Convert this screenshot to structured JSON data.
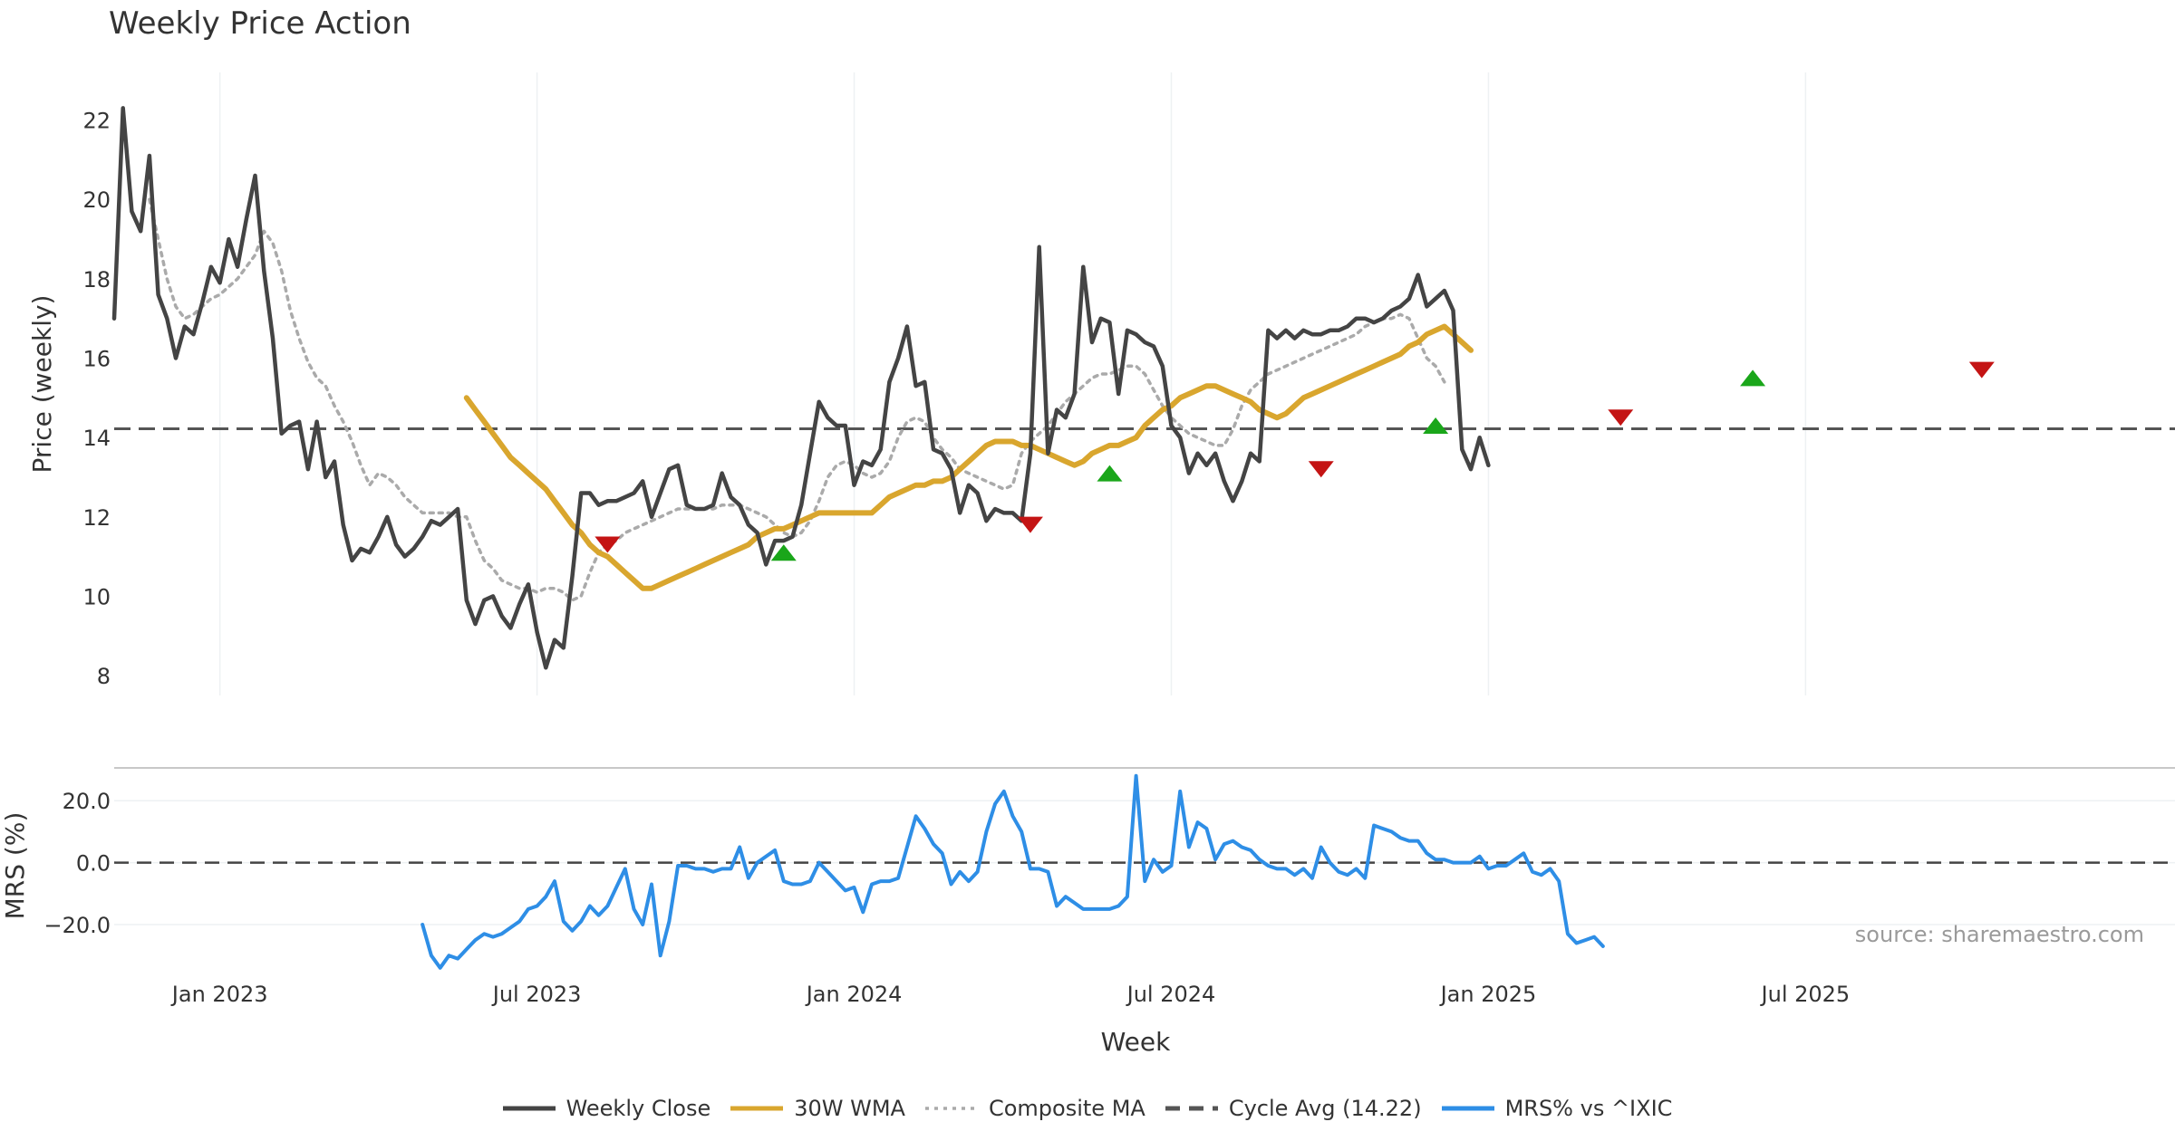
{
  "chart_data": {
    "type": "line",
    "title": "Weekly Price Action",
    "source": "source: sharemaestro.com",
    "xlabel": "Week",
    "x_tick_labels": [
      "Jan 2023",
      "Jul 2023",
      "Jan 2024",
      "Jul 2024",
      "Jan 2025",
      "Jul 2025"
    ],
    "x_tick_weeks": [
      12,
      48,
      84,
      120,
      156,
      192
    ],
    "week_range": [
      0,
      226
    ],
    "price_panel": {
      "ylabel": "Price (weekly)",
      "ylim": [
        7.5,
        23.2
      ],
      "yticks": [
        8,
        10,
        12,
        14,
        16,
        18,
        20,
        22
      ],
      "cycle_avg": 14.22
    },
    "mrs_panel": {
      "ylabel": "MRS (%)",
      "ylim": [
        -32,
        30
      ],
      "yticks": [
        20,
        0,
        -20
      ],
      "ytick_labels": [
        "20.0",
        "0.0",
        "−20.0"
      ],
      "zero_line": 0
    },
    "series": [
      {
        "name": "Weekly Close",
        "color": "#444444",
        "start_week": 0,
        "values": [
          17.0,
          22.3,
          19.7,
          19.2,
          21.1,
          17.6,
          17.0,
          16.0,
          16.8,
          16.6,
          17.4,
          18.3,
          17.9,
          19.0,
          18.3,
          19.5,
          20.6,
          18.2,
          16.5,
          14.1,
          14.3,
          14.4,
          13.2,
          14.4,
          13.0,
          13.4,
          11.8,
          10.9,
          11.2,
          11.1,
          11.5,
          12.0,
          11.3,
          11.0,
          11.2,
          11.5,
          11.9,
          11.8,
          12.0,
          12.2,
          9.9,
          9.3,
          9.9,
          10.0,
          9.5,
          9.2,
          9.8,
          10.3,
          9.1,
          8.2,
          8.9,
          8.7,
          10.5,
          12.6,
          12.6,
          12.3,
          12.4,
          12.4,
          12.5,
          12.6,
          12.9,
          12.0,
          12.6,
          13.2,
          13.3,
          12.3,
          12.2,
          12.2,
          12.3,
          13.1,
          12.5,
          12.3,
          11.8,
          11.6,
          10.8,
          11.4,
          11.4,
          11.5,
          12.3,
          13.6,
          14.9,
          14.5,
          14.3,
          14.3,
          12.8,
          13.4,
          13.3,
          13.7,
          15.4,
          16.0,
          16.8,
          15.3,
          15.4,
          13.7,
          13.6,
          13.2,
          12.1,
          12.8,
          12.6,
          11.9,
          12.2,
          12.1,
          12.1,
          11.9,
          13.6,
          18.8,
          13.6,
          14.7,
          14.5,
          15.1,
          18.3,
          16.4,
          17.0,
          16.9,
          15.1,
          16.7,
          16.6,
          16.4,
          16.3,
          15.8,
          14.3,
          14.0,
          13.1,
          13.6,
          13.3,
          13.6,
          12.9,
          12.4,
          12.9,
          13.6,
          13.4,
          16.7,
          16.5,
          16.7,
          16.5,
          16.7,
          16.6,
          16.6,
          16.7,
          16.7,
          16.8,
          17.0,
          17.0,
          16.9,
          17.0,
          17.2,
          17.3,
          17.5,
          18.1,
          17.3,
          17.5,
          17.7,
          17.2,
          13.7,
          13.2,
          14.0,
          13.3
        ]
      },
      {
        "name": "30W WMA",
        "color": "#d9a62e",
        "start_week": 40,
        "values": [
          15.0,
          14.7,
          14.4,
          14.1,
          13.8,
          13.5,
          13.3,
          13.1,
          12.9,
          12.7,
          12.4,
          12.1,
          11.8,
          11.6,
          11.3,
          11.1,
          11.0,
          10.8,
          10.6,
          10.4,
          10.2,
          10.2,
          10.3,
          10.4,
          10.5,
          10.6,
          10.7,
          10.8,
          10.9,
          11.0,
          11.1,
          11.2,
          11.3,
          11.5,
          11.6,
          11.7,
          11.7,
          11.8,
          11.9,
          12.0,
          12.1,
          12.1,
          12.1,
          12.1,
          12.1,
          12.1,
          12.1,
          12.3,
          12.5,
          12.6,
          12.7,
          12.8,
          12.8,
          12.9,
          12.9,
          13.0,
          13.2,
          13.4,
          13.6,
          13.8,
          13.9,
          13.9,
          13.9,
          13.8,
          13.8,
          13.7,
          13.6,
          13.5,
          13.4,
          13.3,
          13.4,
          13.6,
          13.7,
          13.8,
          13.8,
          13.9,
          14.0,
          14.3,
          14.5,
          14.7,
          14.8,
          15.0,
          15.1,
          15.2,
          15.3,
          15.3,
          15.2,
          15.1,
          15.0,
          14.9,
          14.7,
          14.6,
          14.5,
          14.6,
          14.8,
          15.0,
          15.1,
          15.2,
          15.3,
          15.4,
          15.5,
          15.6,
          15.7,
          15.8,
          15.9,
          16.0,
          16.1,
          16.3,
          16.4,
          16.6,
          16.7,
          16.8,
          16.6,
          16.4,
          16.2
        ]
      },
      {
        "name": "Composite MA",
        "color": "#aaaaaa",
        "start_week": 4,
        "values": [
          20.0,
          19.0,
          18.0,
          17.3,
          17.0,
          17.1,
          17.3,
          17.5,
          17.6,
          17.8,
          18.0,
          18.3,
          18.6,
          19.2,
          18.9,
          18.2,
          17.2,
          16.5,
          15.9,
          15.5,
          15.3,
          14.8,
          14.4,
          13.9,
          13.3,
          12.8,
          13.1,
          13.0,
          12.8,
          12.5,
          12.3,
          12.1,
          12.1,
          12.1,
          12.1,
          12.0,
          12.0,
          11.4,
          10.9,
          10.7,
          10.4,
          10.3,
          10.2,
          10.2,
          10.1,
          10.2,
          10.2,
          10.1,
          9.9,
          10.0,
          10.6,
          11.1,
          11.3,
          11.4,
          11.6,
          11.7,
          11.8,
          11.9,
          12.0,
          12.1,
          12.2,
          12.2,
          12.2,
          12.2,
          12.2,
          12.3,
          12.3,
          12.3,
          12.2,
          12.1,
          12.0,
          11.8,
          11.6,
          11.5,
          11.6,
          11.9,
          12.4,
          13.0,
          13.3,
          13.4,
          13.3,
          13.1,
          13.0,
          13.1,
          13.4,
          14.0,
          14.4,
          14.5,
          14.4,
          14.0,
          13.7,
          13.5,
          13.2,
          13.1,
          13.0,
          12.9,
          12.8,
          12.7,
          12.8,
          13.6,
          13.9,
          14.1,
          14.3,
          14.6,
          14.9,
          15.1,
          15.3,
          15.5,
          15.6,
          15.6,
          15.7,
          15.8,
          15.8,
          15.6,
          15.2,
          14.8,
          14.5,
          14.3,
          14.1,
          14.0,
          13.9,
          13.8,
          13.8,
          14.2,
          14.8,
          15.2,
          15.4,
          15.6,
          15.7,
          15.8,
          15.9,
          16.0,
          16.1,
          16.2,
          16.3,
          16.4,
          16.5,
          16.6,
          16.8,
          16.9,
          17.0,
          17.0,
          17.1,
          17.0,
          16.5,
          16.0,
          15.8,
          15.4
        ]
      },
      {
        "name": "MRS% vs ^IXIC",
        "color": "#2e8ee6",
        "panel": "mrs",
        "start_week": 35,
        "values": [
          -20,
          -30,
          -34,
          -30,
          -31,
          -28,
          -25,
          -23,
          -24,
          -23,
          -21,
          -19,
          -15,
          -14,
          -11,
          -6,
          -19,
          -22,
          -19,
          -14,
          -17,
          -14,
          -8,
          -2,
          -15,
          -20,
          -7,
          -30,
          -19,
          -1,
          -1,
          -2,
          -2,
          -3,
          -2,
          -2,
          5,
          -5,
          0,
          2,
          4,
          -6,
          -7,
          -7,
          -6,
          0,
          -3,
          -6,
          -9,
          -8,
          -16,
          -7,
          -6,
          -6,
          -5,
          5,
          15,
          11,
          6,
          3,
          -7,
          -3,
          -6,
          -3,
          10,
          19,
          23,
          15,
          10,
          -2,
          -2,
          -3,
          -14,
          -11,
          -13,
          -15,
          -15,
          -15,
          -15,
          -14,
          -11,
          28,
          -6,
          1,
          -3,
          -1,
          23,
          5,
          13,
          11,
          1,
          6,
          7,
          5,
          4,
          1,
          -1,
          -2,
          -2,
          -4,
          -2,
          -5,
          5,
          0,
          -3,
          -4,
          -2,
          -5,
          12,
          11,
          10,
          8,
          7,
          7,
          3,
          1,
          1,
          0,
          0,
          0,
          2,
          -2,
          -1,
          -1,
          1,
          3,
          -3,
          -4,
          -2,
          -6,
          -23,
          -26,
          -25,
          -24,
          -27
        ]
      }
    ],
    "cycle_avg_line": {
      "name": "Cycle Avg (14.22)",
      "value": 14.22,
      "color": "#555555"
    },
    "signals": [
      {
        "type": "sell",
        "week": 56,
        "price": 11.3
      },
      {
        "type": "buy",
        "week": 76,
        "price": 11.1
      },
      {
        "type": "sell",
        "week": 104,
        "price": 11.8
      },
      {
        "type": "buy",
        "week": 113,
        "price": 13.1
      },
      {
        "type": "sell",
        "week": 137,
        "price": 13.2
      },
      {
        "type": "buy",
        "week": 150,
        "price": 14.3
      },
      {
        "type": "sell",
        "week": 171,
        "price": 14.5
      },
      {
        "type": "buy",
        "week": 186,
        "price": 15.5
      },
      {
        "type": "sell",
        "week": 212,
        "price": 15.7
      }
    ],
    "signal_colors": {
      "buy": "#1aa61a",
      "sell": "#c41414"
    },
    "legend": [
      {
        "label": "Weekly Close",
        "style": "solid",
        "color": "#444444"
      },
      {
        "label": "30W WMA",
        "style": "solid",
        "color": "#d9a62e"
      },
      {
        "label": "Composite MA",
        "style": "dotted",
        "color": "#aaaaaa"
      },
      {
        "label": "Cycle Avg (14.22)",
        "style": "dashed",
        "color": "#555555"
      },
      {
        "label": "MRS% vs ^IXIC",
        "style": "solid",
        "color": "#2e8ee6"
      }
    ]
  }
}
